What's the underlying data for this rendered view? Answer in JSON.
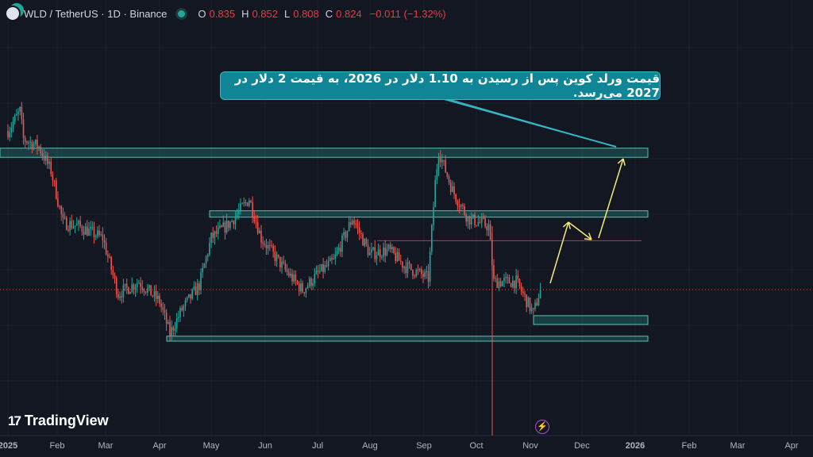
{
  "header": {
    "symbol": "WLD / TetherUS · 1D · Binance",
    "open_label": "O",
    "open": "0.835",
    "high_label": "H",
    "high": "0.852",
    "low_label": "L",
    "low": "0.808",
    "close_label": "C",
    "close": "0.824",
    "change": "−0.011 (−1.32%)"
  },
  "annotation": {
    "text": "قیمت ورلد کوین پس از رسیدن به 1.10 دلار در 2026، به قیمت 2 دلار در 2027 می‌رسد."
  },
  "branding": {
    "logo_text": "TradingView",
    "logo_mark": "17"
  },
  "colors": {
    "up": "#26a69a",
    "down": "#ef5350",
    "zone": "#26a69a",
    "arrow": "#f5e97a",
    "annotation": "#0f8595",
    "background": "#131722"
  },
  "x_axis": {
    "labels": [
      "2025",
      "Feb",
      "Mar",
      "Apr",
      "May",
      "Jun",
      "Jul",
      "Aug",
      "Sep",
      "Oct",
      "Nov",
      "Dec",
      "2026",
      "Feb",
      "Mar",
      "Apr"
    ]
  },
  "chart_data": {
    "type": "candlestick",
    "scale": "log",
    "timeframe": "1D",
    "close_path": [
      {
        "date": "2025-01-01",
        "price": 2.43
      },
      {
        "date": "2025-01-08",
        "price": 2.78
      },
      {
        "date": "2025-01-10",
        "price": 2.3
      },
      {
        "date": "2025-01-19",
        "price": 2.18
      },
      {
        "date": "2025-01-26",
        "price": 1.85
      },
      {
        "date": "2025-02-02",
        "price": 1.3
      },
      {
        "date": "2025-02-11",
        "price": 1.27
      },
      {
        "date": "2025-02-25",
        "price": 1.17
      },
      {
        "date": "2025-03-06",
        "price": 0.8
      },
      {
        "date": "2025-03-18",
        "price": 0.87
      },
      {
        "date": "2025-03-30",
        "price": 0.76
      },
      {
        "date": "2025-04-05",
        "price": 0.61
      },
      {
        "date": "2025-04-12",
        "price": 0.72
      },
      {
        "date": "2025-04-22",
        "price": 0.85
      },
      {
        "date": "2025-04-29",
        "price": 1.17
      },
      {
        "date": "2025-05-10",
        "price": 1.3
      },
      {
        "date": "2025-05-21",
        "price": 1.53
      },
      {
        "date": "2025-05-28",
        "price": 1.17
      },
      {
        "date": "2025-06-11",
        "price": 0.94
      },
      {
        "date": "2025-06-21",
        "price": 0.82
      },
      {
        "date": "2025-06-30",
        "price": 0.92
      },
      {
        "date": "2025-07-09",
        "price": 1.0
      },
      {
        "date": "2025-07-20",
        "price": 1.34
      },
      {
        "date": "2025-07-30",
        "price": 1.05
      },
      {
        "date": "2025-08-10",
        "price": 1.08
      },
      {
        "date": "2025-08-19",
        "price": 0.97
      },
      {
        "date": "2025-09-02",
        "price": 0.89
      },
      {
        "date": "2025-09-06",
        "price": 1.71
      },
      {
        "date": "2025-09-08",
        "price": 2.12
      },
      {
        "date": "2025-09-16",
        "price": 1.62
      },
      {
        "date": "2025-09-25",
        "price": 1.34
      },
      {
        "date": "2025-10-07",
        "price": 1.27
      },
      {
        "date": "2025-10-10",
        "price": 0.87
      },
      {
        "date": "2025-10-23",
        "price": 0.87
      },
      {
        "date": "2025-11-02",
        "price": 0.7
      },
      {
        "date": "2025-11-06",
        "price": 0.824
      }
    ],
    "zones": [
      {
        "top": 2.16,
        "bottom": 2.03
      },
      {
        "top": 1.41,
        "bottom": 1.35
      },
      {
        "top": 0.69,
        "bottom": 0.65
      },
      {
        "top": 0.6,
        "bottom": 0.58
      }
    ],
    "horizontal_line": 1.15,
    "current_price": 0.824
  }
}
